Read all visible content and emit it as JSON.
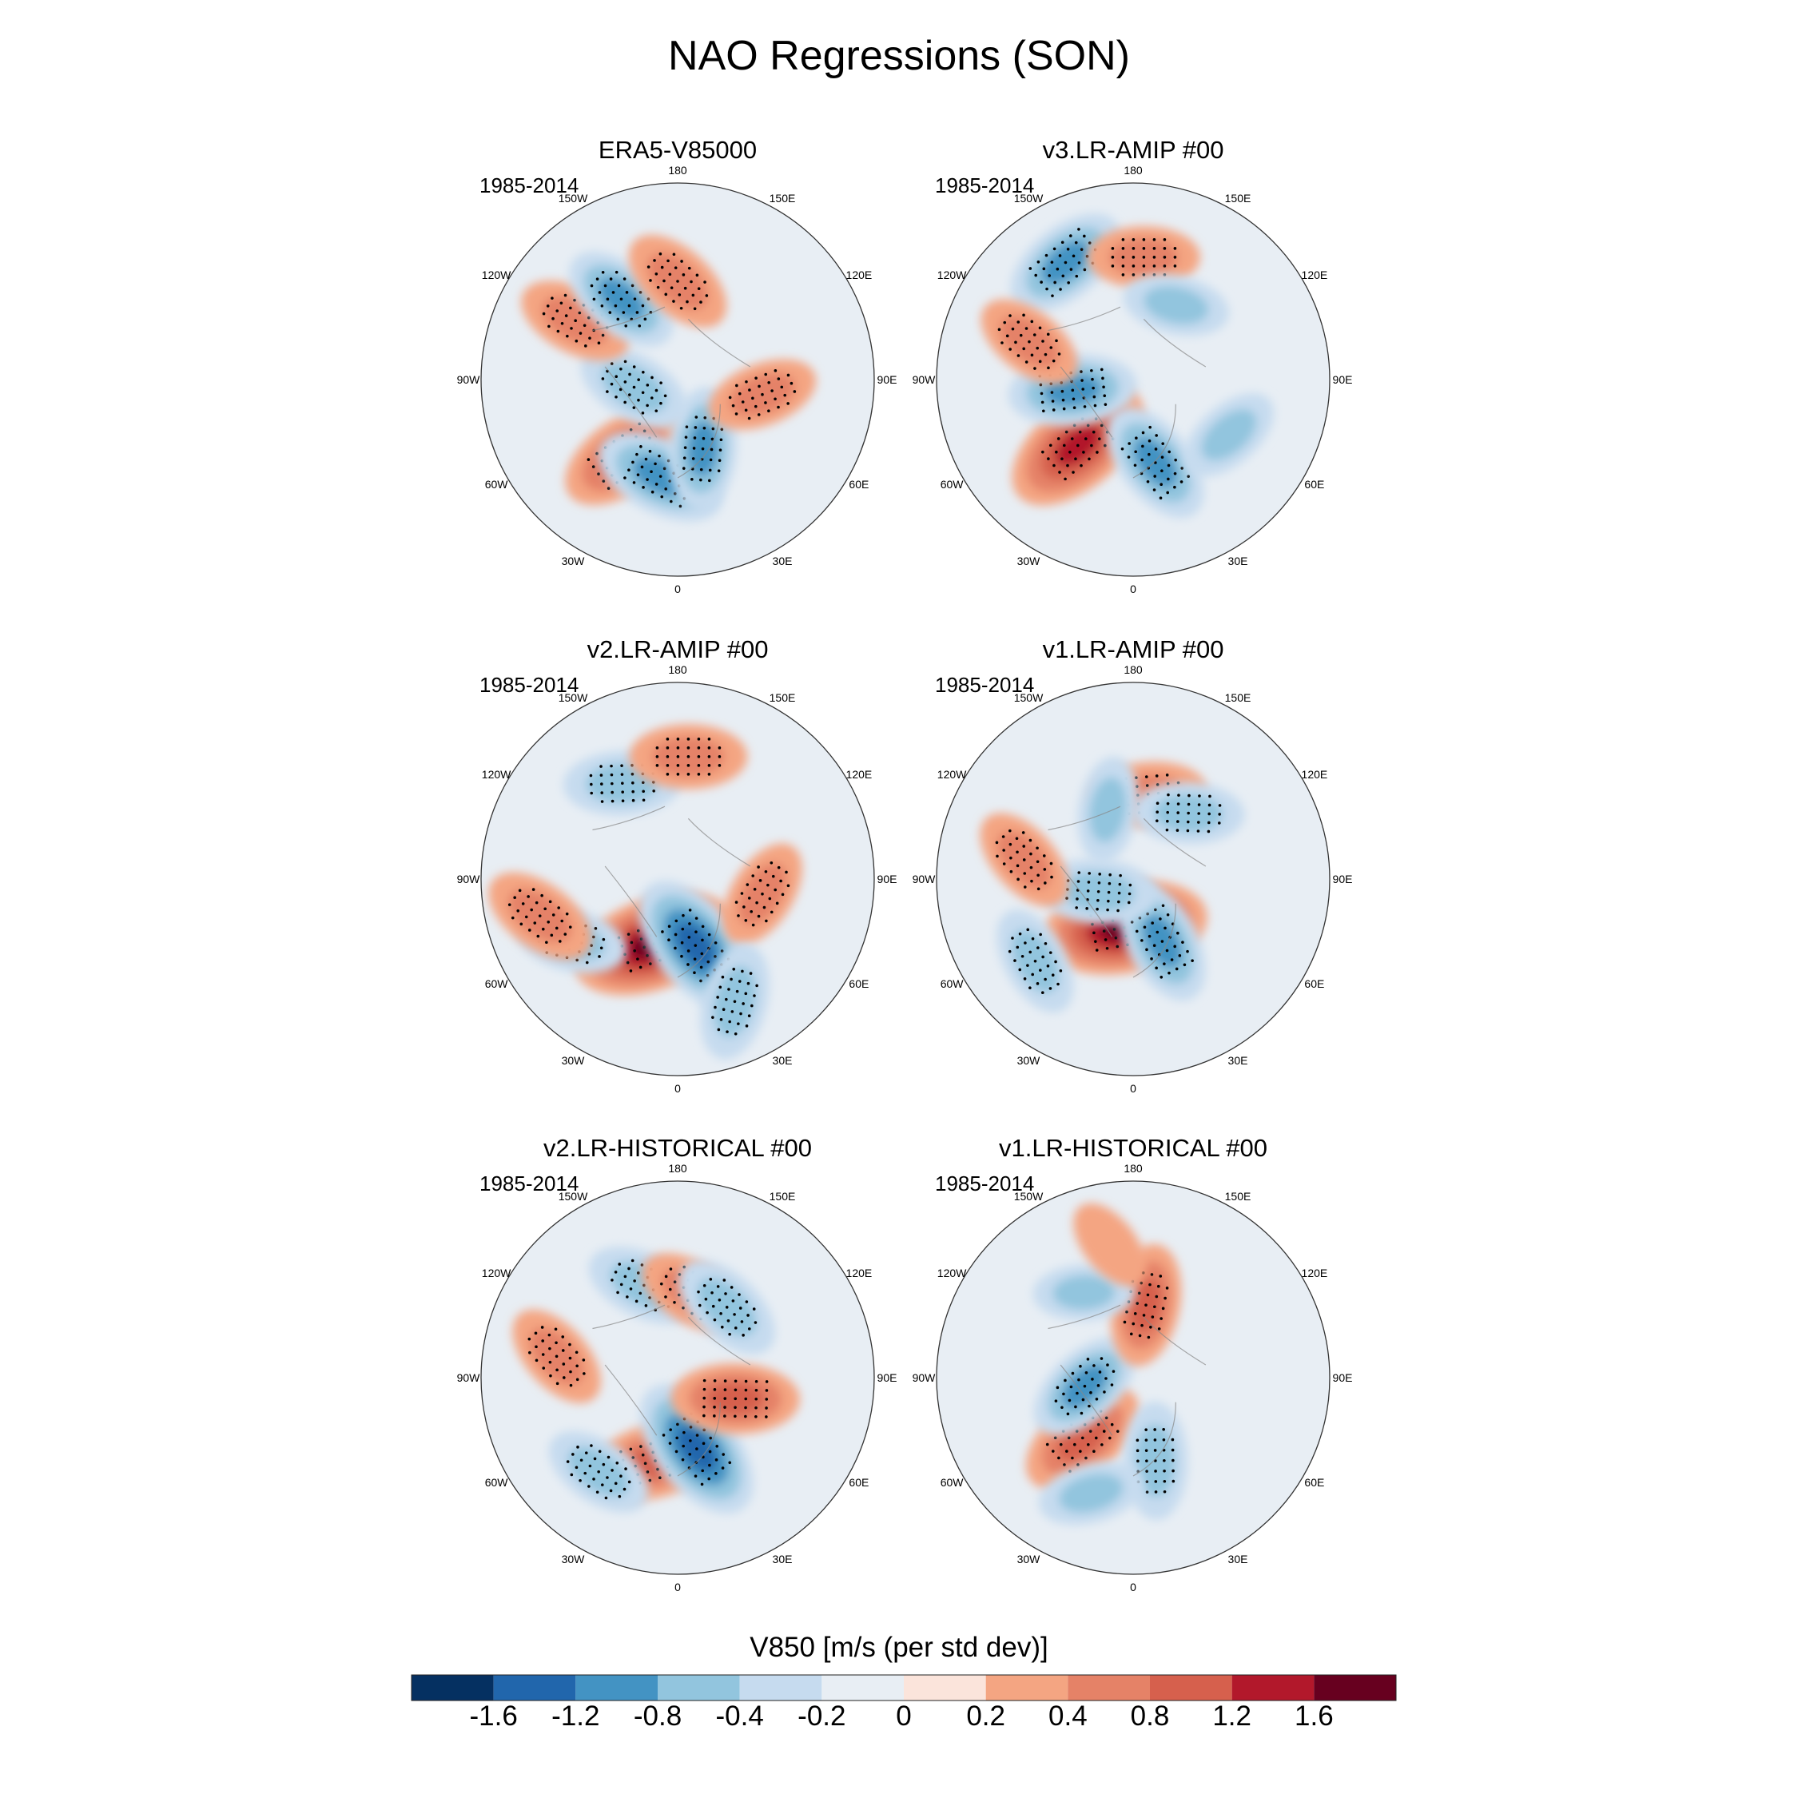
{
  "title": "NAO Regressions (SON)",
  "period_label": "1985-2014",
  "lon_labels": [
    "180",
    "150E",
    "120E",
    "90E",
    "60E",
    "30E",
    "0",
    "30W",
    "60W",
    "90W",
    "120W",
    "150W"
  ],
  "panels": [
    {
      "id": "era5",
      "title": "ERA5-V85000"
    },
    {
      "id": "v3amip",
      "title": "v3.LR-AMIP  #00"
    },
    {
      "id": "v2amip",
      "title": "v2.LR-AMIP  #00"
    },
    {
      "id": "v1amip",
      "title": "v1.LR-AMIP  #00"
    },
    {
      "id": "v2hist",
      "title": "v2.LR-HISTORICAL  #00"
    },
    {
      "id": "v1hist",
      "title": "v1.LR-HISTORICAL  #00"
    }
  ],
  "colorbar": {
    "title": "V850 [m/s (per std dev)]",
    "ticks": [
      "-1.6",
      "-1.2",
      "-0.8",
      "-0.4",
      "-0.2",
      "0",
      "0.2",
      "0.4",
      "0.8",
      "1.2",
      "1.6"
    ],
    "levels": [
      -1.6,
      -1.2,
      -0.8,
      -0.4,
      -0.2,
      0,
      0.2,
      0.4,
      0.8,
      1.2,
      1.6
    ],
    "colors": [
      "#053061",
      "#2166ac",
      "#4393c3",
      "#92c5de",
      "#c6dbef",
      "#e8eef4",
      "#fbe4db",
      "#f4a582",
      "#e58267",
      "#d6604d",
      "#b2182b",
      "#67001f"
    ]
  },
  "chart_data": {
    "type": "heatmap",
    "title": "NAO Regressions (SON)",
    "variable": "V850 [m/s (per std dev)]",
    "projection": "north polar stereographic",
    "period": "1985-2014",
    "season": "SON",
    "panels": [
      {
        "title": "ERA5-V85000",
        "anomalies": [
          {
            "lon": -35,
            "lat": 52,
            "value": 1.0
          },
          {
            "lon": -10,
            "lat": 50,
            "value": -1.0
          },
          {
            "lon": 20,
            "lat": 60,
            "value": -0.8
          },
          {
            "lon": -80,
            "lat": 72,
            "value": -0.7
          },
          {
            "lon": -120,
            "lat": 42,
            "value": 0.7
          },
          {
            "lon": -145,
            "lat": 50,
            "value": -0.8
          },
          {
            "lon": 180,
            "lat": 50,
            "value": 0.7
          },
          {
            "lon": 80,
            "lat": 55,
            "value": 0.6
          }
        ]
      },
      {
        "title": "v3.LR-AMIP  #00",
        "anomalies": [
          {
            "lon": -40,
            "lat": 55,
            "value": 1.4
          },
          {
            "lon": 15,
            "lat": 55,
            "value": -0.9
          },
          {
            "lon": -80,
            "lat": 65,
            "value": -0.9
          },
          {
            "lon": -150,
            "lat": 35,
            "value": -0.9
          },
          {
            "lon": -110,
            "lat": 45,
            "value": 0.6
          },
          {
            "lon": 175,
            "lat": 40,
            "value": 0.6
          },
          {
            "lon": 150,
            "lat": 55,
            "value": -0.5
          },
          {
            "lon": 60,
            "lat": 45,
            "value": -0.5
          }
        ]
      },
      {
        "title": "v2.LR-AMIP  #00",
        "anomalies": [
          {
            "lon": -20,
            "lat": 62,
            "value": 1.6
          },
          {
            "lon": 15,
            "lat": 62,
            "value": -1.3
          },
          {
            "lon": -60,
            "lat": 40,
            "value": -0.6
          },
          {
            "lon": -75,
            "lat": 32,
            "value": 0.7
          },
          {
            "lon": -150,
            "lat": 45,
            "value": -0.7
          },
          {
            "lon": 175,
            "lat": 40,
            "value": 0.7
          },
          {
            "lon": 80,
            "lat": 55,
            "value": 0.6
          },
          {
            "lon": 25,
            "lat": 35,
            "value": -0.7
          }
        ]
      },
      {
        "title": "v1.LR-AMIP  #00",
        "anomalies": [
          {
            "lon": -10,
            "lat": 70,
            "value": 1.6
          },
          {
            "lon": 25,
            "lat": 62,
            "value": -0.9
          },
          {
            "lon": -70,
            "lat": 75,
            "value": -0.7
          },
          {
            "lon": -50,
            "lat": 38,
            "value": -0.6
          },
          {
            "lon": -100,
            "lat": 45,
            "value": 0.6
          },
          {
            "lon": 170,
            "lat": 55,
            "value": 0.7
          },
          {
            "lon": 140,
            "lat": 55,
            "value": -0.6
          },
          {
            "lon": -160,
            "lat": 60,
            "value": -0.5
          }
        ]
      },
      {
        "title": "v2.LR-HISTORICAL  #00",
        "anomalies": [
          {
            "lon": -15,
            "lat": 55,
            "value": 1.0
          },
          {
            "lon": 15,
            "lat": 60,
            "value": -1.3
          },
          {
            "lon": -40,
            "lat": 40,
            "value": -0.6
          },
          {
            "lon": 70,
            "lat": 65,
            "value": 0.9
          },
          {
            "lon": -100,
            "lat": 40,
            "value": 0.6
          },
          {
            "lon": -160,
            "lat": 50,
            "value": -0.7
          },
          {
            "lon": 170,
            "lat": 55,
            "value": 0.6
          },
          {
            "lon": 145,
            "lat": 55,
            "value": -0.7
          }
        ]
      },
      {
        "title": "v1.LR-HISTORICAL  #00",
        "anomalies": [
          {
            "lon": -40,
            "lat": 58,
            "value": 1.0
          },
          {
            "lon": -80,
            "lat": 70,
            "value": -0.8
          },
          {
            "lon": 15,
            "lat": 55,
            "value": -0.7
          },
          {
            "lon": 170,
            "lat": 60,
            "value": 0.8
          },
          {
            "lon": -150,
            "lat": 50,
            "value": -0.4
          },
          {
            "lon": -20,
            "lat": 40,
            "value": -0.5
          },
          {
            "lon": -170,
            "lat": 35,
            "value": 0.3
          }
        ]
      }
    ]
  }
}
